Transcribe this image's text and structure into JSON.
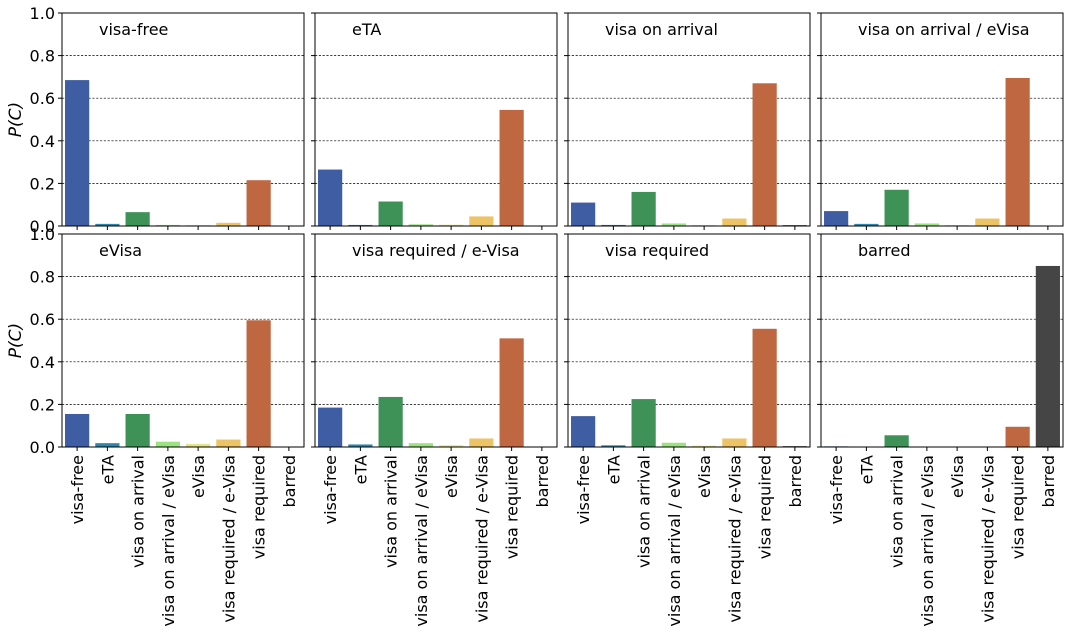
{
  "colors": {
    "visa-free": "#3f5da3",
    "eTA": "#2e86ab",
    "visa on arrival": "#3e9157",
    "visa on arrival / eVisa": "#9be380",
    "eVisa": "#e5e58a",
    "visa required / e-Visa": "#ecc465",
    "visa required": "#bf6740",
    "barred": "#454545"
  },
  "chart_data": [
    {
      "type": "bar",
      "title": "visa-free",
      "ylabel": "P(C)",
      "ylim": [
        0,
        1.0
      ],
      "yticks": [
        "0.0",
        "0.2",
        "0.4",
        "0.6",
        "0.8",
        "1.0"
      ],
      "grid": "y",
      "categories": [
        "visa-free",
        "eTA",
        "visa on arrival",
        "visa on arrival / eVisa",
        "eVisa",
        "visa required / e-Visa",
        "visa required",
        "barred"
      ],
      "values": [
        0.685,
        0.01,
        0.065,
        0.005,
        0.004,
        0.015,
        0.215,
        0.0
      ]
    },
    {
      "type": "bar",
      "title": "eTA",
      "ylim": [
        0,
        1.0
      ],
      "grid": "y",
      "categories": [
        "visa-free",
        "eTA",
        "visa on arrival",
        "visa on arrival / eVisa",
        "eVisa",
        "visa required / e-Visa",
        "visa required",
        "barred"
      ],
      "values": [
        0.265,
        0.005,
        0.115,
        0.008,
        0.006,
        0.045,
        0.545,
        0.0
      ]
    },
    {
      "type": "bar",
      "title": "visa on arrival",
      "ylim": [
        0,
        1.0
      ],
      "grid": "y",
      "categories": [
        "visa-free",
        "eTA",
        "visa on arrival",
        "visa on arrival / eVisa",
        "eVisa",
        "visa required / e-Visa",
        "visa required",
        "barred"
      ],
      "values": [
        0.11,
        0.005,
        0.16,
        0.012,
        0.004,
        0.035,
        0.67,
        0.004
      ]
    },
    {
      "type": "bar",
      "title": "visa on arrival / eVisa",
      "ylim": [
        0,
        1.0
      ],
      "grid": "y",
      "categories": [
        "visa-free",
        "eTA",
        "visa on arrival",
        "visa on arrival / eVisa",
        "eVisa",
        "visa required / e-Visa",
        "visa required",
        "barred"
      ],
      "values": [
        0.07,
        0.01,
        0.17,
        0.012,
        0.004,
        0.035,
        0.695,
        0.0
      ]
    },
    {
      "type": "bar",
      "title": "eVisa",
      "ylabel": "P(C)",
      "ylim": [
        0,
        1.0
      ],
      "yticks": [
        "0.0",
        "0.2",
        "0.4",
        "0.6",
        "0.8",
        "1.0"
      ],
      "grid": "y",
      "categories": [
        "visa-free",
        "eTA",
        "visa on arrival",
        "visa on arrival / eVisa",
        "eVisa",
        "visa required / e-Visa",
        "visa required",
        "barred"
      ],
      "values": [
        0.155,
        0.018,
        0.155,
        0.025,
        0.015,
        0.035,
        0.595,
        0.0
      ]
    },
    {
      "type": "bar",
      "title": "visa required / e-Visa",
      "ylim": [
        0,
        1.0
      ],
      "grid": "y",
      "categories": [
        "visa-free",
        "eTA",
        "visa on arrival",
        "visa on arrival / eVisa",
        "eVisa",
        "visa required / e-Visa",
        "visa required",
        "barred"
      ],
      "values": [
        0.185,
        0.012,
        0.235,
        0.018,
        0.008,
        0.04,
        0.51,
        0.0
      ]
    },
    {
      "type": "bar",
      "title": "visa required",
      "ylim": [
        0,
        1.0
      ],
      "grid": "y",
      "categories": [
        "visa-free",
        "eTA",
        "visa on arrival",
        "visa on arrival / eVisa",
        "eVisa",
        "visa required / e-Visa",
        "visa required",
        "barred"
      ],
      "values": [
        0.145,
        0.008,
        0.225,
        0.02,
        0.006,
        0.04,
        0.555,
        0.004
      ]
    },
    {
      "type": "bar",
      "title": "barred",
      "ylim": [
        0,
        1.0
      ],
      "grid": "y",
      "categories": [
        "visa-free",
        "eTA",
        "visa on arrival",
        "visa on arrival / eVisa",
        "eVisa",
        "visa required / e-Visa",
        "visa required",
        "barred"
      ],
      "values": [
        0.003,
        0.0,
        0.055,
        0.0,
        0.0,
        0.0,
        0.095,
        0.85
      ]
    }
  ]
}
